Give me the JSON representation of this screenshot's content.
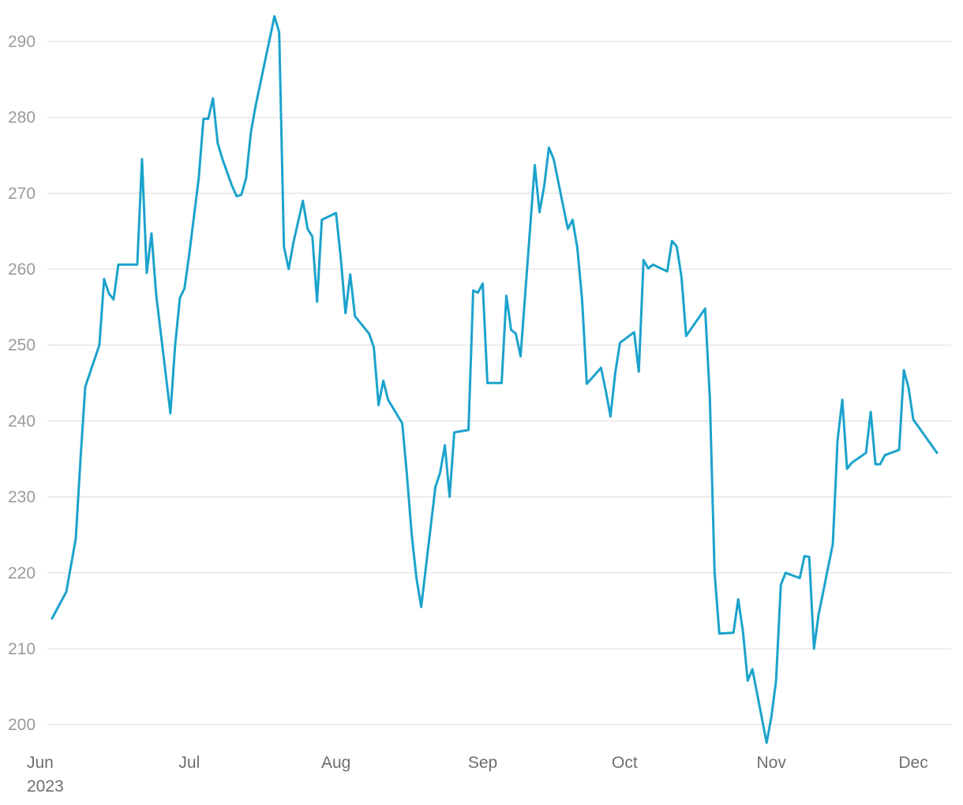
{
  "chart_data": {
    "type": "line",
    "title": "",
    "xlabel": "",
    "ylabel": "",
    "color": "#1ba3cc",
    "grid": true,
    "ylim": [
      197,
      294
    ],
    "yticks": [
      200,
      210,
      220,
      230,
      240,
      250,
      260,
      270,
      280,
      290
    ],
    "xlim": [
      "2023-06-01",
      "2023-12-09"
    ],
    "xticks": [
      {
        "date": "2023-06-01",
        "label": "Jun",
        "sublabel": "2023"
      },
      {
        "date": "2023-07-01",
        "label": "Jul",
        "sublabel": ""
      },
      {
        "date": "2023-08-01",
        "label": "Aug",
        "sublabel": ""
      },
      {
        "date": "2023-09-01",
        "label": "Sep",
        "sublabel": ""
      },
      {
        "date": "2023-10-01",
        "label": "Oct",
        "sublabel": ""
      },
      {
        "date": "2023-11-01",
        "label": "Nov",
        "sublabel": ""
      },
      {
        "date": "2023-12-01",
        "label": "Dec",
        "sublabel": ""
      }
    ],
    "series": [
      {
        "name": "",
        "points": [
          [
            "2023-06-02",
            214.0
          ],
          [
            "2023-06-05",
            217.5
          ],
          [
            "2023-06-07",
            224.5
          ],
          [
            "2023-06-08",
            235.0
          ],
          [
            "2023-06-09",
            244.5
          ],
          [
            "2023-06-12",
            250.0
          ],
          [
            "2023-06-13",
            258.7
          ],
          [
            "2023-06-14",
            256.8
          ],
          [
            "2023-06-15",
            256.0
          ],
          [
            "2023-06-16",
            260.6
          ],
          [
            "2023-06-20",
            260.6
          ],
          [
            "2023-06-21",
            274.5
          ],
          [
            "2023-06-22",
            259.5
          ],
          [
            "2023-06-23",
            264.7
          ],
          [
            "2023-06-24",
            256.6
          ],
          [
            "2023-06-27",
            241.0
          ],
          [
            "2023-06-28",
            250.0
          ],
          [
            "2023-06-29",
            256.2
          ],
          [
            "2023-06-30",
            257.5
          ],
          [
            "2023-07-01",
            262.0
          ],
          [
            "2023-07-03",
            272.0
          ],
          [
            "2023-07-04",
            279.8
          ],
          [
            "2023-07-05",
            279.8
          ],
          [
            "2023-07-06",
            282.5
          ],
          [
            "2023-07-07",
            276.6
          ],
          [
            "2023-07-08",
            274.5
          ],
          [
            "2023-07-10",
            271.0
          ],
          [
            "2023-07-11",
            269.6
          ],
          [
            "2023-07-12",
            269.8
          ],
          [
            "2023-07-13",
            272.0
          ],
          [
            "2023-07-14",
            278.0
          ],
          [
            "2023-07-15",
            281.5
          ],
          [
            "2023-07-19",
            293.3
          ],
          [
            "2023-07-20",
            291.2
          ],
          [
            "2023-07-21",
            263.0
          ],
          [
            "2023-07-22",
            260.0
          ],
          [
            "2023-07-23",
            263.5
          ],
          [
            "2023-07-25",
            269.0
          ],
          [
            "2023-07-26",
            265.3
          ],
          [
            "2023-07-27",
            264.3
          ],
          [
            "2023-07-28",
            255.7
          ],
          [
            "2023-07-29",
            266.5
          ],
          [
            "2023-08-01",
            267.4
          ],
          [
            "2023-08-02",
            261.5
          ],
          [
            "2023-08-03",
            254.2
          ],
          [
            "2023-08-04",
            259.3
          ],
          [
            "2023-08-05",
            253.8
          ],
          [
            "2023-08-08",
            251.5
          ],
          [
            "2023-08-09",
            249.7
          ],
          [
            "2023-08-10",
            242.1
          ],
          [
            "2023-08-11",
            245.3
          ],
          [
            "2023-08-12",
            242.8
          ],
          [
            "2023-08-15",
            239.7
          ],
          [
            "2023-08-16",
            232.8
          ],
          [
            "2023-08-17",
            225.0
          ],
          [
            "2023-08-18",
            219.3
          ],
          [
            "2023-08-19",
            215.5
          ],
          [
            "2023-08-22",
            231.3
          ],
          [
            "2023-08-23",
            233.2
          ],
          [
            "2023-08-24",
            236.8
          ],
          [
            "2023-08-25",
            230.0
          ],
          [
            "2023-08-26",
            238.5
          ],
          [
            "2023-08-29",
            238.8
          ],
          [
            "2023-08-30",
            257.2
          ],
          [
            "2023-08-31",
            256.9
          ],
          [
            "2023-09-01",
            258.1
          ],
          [
            "2023-09-02",
            245.0
          ],
          [
            "2023-09-05",
            245.0
          ],
          [
            "2023-09-06",
            256.5
          ],
          [
            "2023-09-07",
            252.0
          ],
          [
            "2023-09-08",
            251.5
          ],
          [
            "2023-09-09",
            248.5
          ],
          [
            "2023-09-12",
            273.7
          ],
          [
            "2023-09-13",
            267.5
          ],
          [
            "2023-09-14",
            271.0
          ],
          [
            "2023-09-15",
            276.0
          ],
          [
            "2023-09-16",
            274.5
          ],
          [
            "2023-09-19",
            265.3
          ],
          [
            "2023-09-20",
            266.5
          ],
          [
            "2023-09-21",
            262.8
          ],
          [
            "2023-09-22",
            256.0
          ],
          [
            "2023-09-23",
            244.9
          ],
          [
            "2023-09-26",
            247.0
          ],
          [
            "2023-09-27",
            244.0
          ],
          [
            "2023-09-28",
            240.6
          ],
          [
            "2023-09-29",
            246.3
          ],
          [
            "2023-09-30",
            250.3
          ],
          [
            "2023-10-03",
            251.7
          ],
          [
            "2023-10-04",
            246.5
          ],
          [
            "2023-10-05",
            261.2
          ],
          [
            "2023-10-06",
            260.1
          ],
          [
            "2023-10-07",
            260.6
          ],
          [
            "2023-10-10",
            259.7
          ],
          [
            "2023-10-11",
            263.7
          ],
          [
            "2023-10-12",
            263.0
          ],
          [
            "2023-10-13",
            259.0
          ],
          [
            "2023-10-14",
            251.2
          ],
          [
            "2023-10-18",
            254.8
          ],
          [
            "2023-10-19",
            243.0
          ],
          [
            "2023-10-20",
            220.0
          ],
          [
            "2023-10-21",
            212.0
          ],
          [
            "2023-10-24",
            212.1
          ],
          [
            "2023-10-25",
            216.5
          ],
          [
            "2023-10-26",
            212.3
          ],
          [
            "2023-10-27",
            205.8
          ],
          [
            "2023-10-28",
            207.3
          ],
          [
            "2023-10-31",
            197.6
          ],
          [
            "2023-11-01",
            201.0
          ],
          [
            "2023-11-02",
            205.8
          ],
          [
            "2023-11-03",
            218.4
          ],
          [
            "2023-11-04",
            220.0
          ],
          [
            "2023-11-07",
            219.3
          ],
          [
            "2023-11-08",
            222.2
          ],
          [
            "2023-11-09",
            222.1
          ],
          [
            "2023-11-10",
            210.0
          ],
          [
            "2023-11-11",
            214.5
          ],
          [
            "2023-11-14",
            223.8
          ],
          [
            "2023-11-15",
            237.5
          ],
          [
            "2023-11-16",
            242.8
          ],
          [
            "2023-11-17",
            233.7
          ],
          [
            "2023-11-18",
            234.5
          ],
          [
            "2023-11-21",
            235.8
          ],
          [
            "2023-11-22",
            241.2
          ],
          [
            "2023-11-23",
            234.3
          ],
          [
            "2023-11-24",
            234.3
          ],
          [
            "2023-11-25",
            235.5
          ],
          [
            "2023-11-28",
            236.2
          ],
          [
            "2023-11-29",
            246.7
          ],
          [
            "2023-11-30",
            244.4
          ],
          [
            "2023-12-01",
            240.2
          ],
          [
            "2023-12-06",
            235.8
          ]
        ]
      }
    ]
  }
}
